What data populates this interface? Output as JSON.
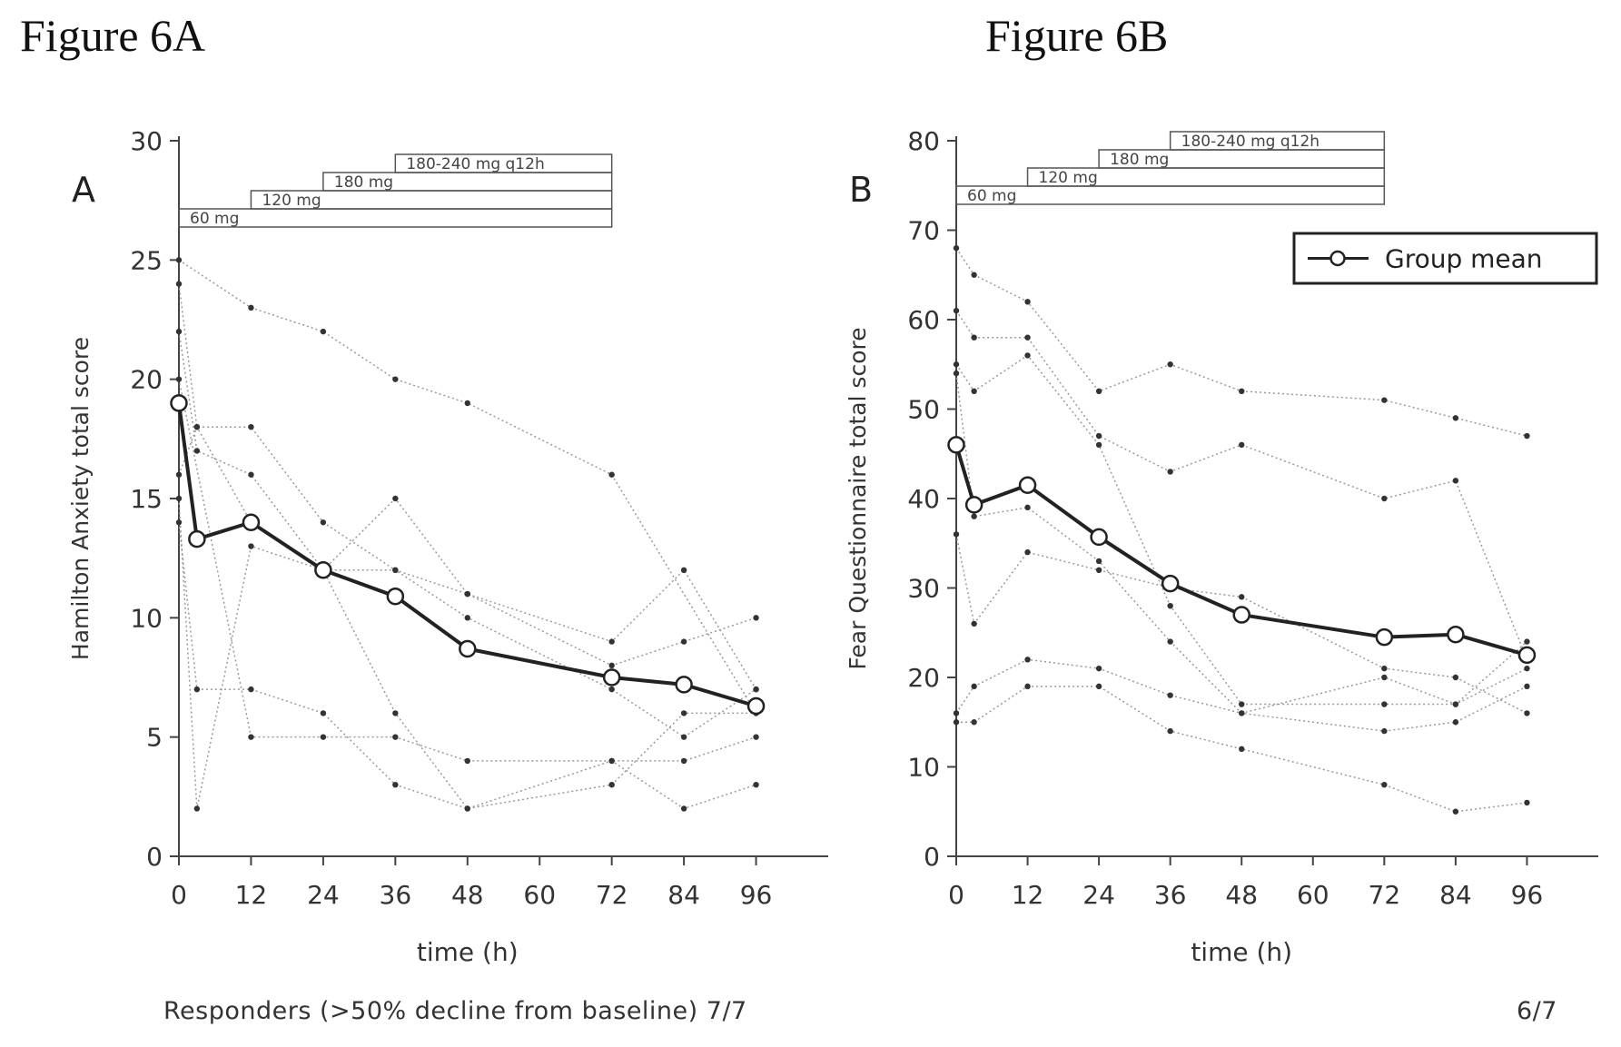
{
  "figures": {
    "a_title": "Figure 6A",
    "b_title": "Figure 6B"
  },
  "footer": {
    "left_text": "Responders (>50% decline from baseline) 7/7",
    "right_text": "6/7"
  },
  "chart_data": [
    {
      "type": "line",
      "panel_label": "A",
      "xlabel": "time (h)",
      "ylabel": "Hamilton Anxiety total score",
      "xticks": [
        0,
        12,
        24,
        36,
        48,
        60,
        72,
        84,
        96
      ],
      "yticks": [
        0,
        5,
        10,
        15,
        20,
        25,
        30
      ],
      "xlim": [
        0,
        108
      ],
      "ylim": [
        0,
        30
      ],
      "grid": false,
      "dose_bars": [
        {
          "label": "60 mg",
          "x_start": 0,
          "x_end": 72
        },
        {
          "label": "120 mg",
          "x_start": 12,
          "x_end": 72
        },
        {
          "label": "180 mg",
          "x_start": 24,
          "x_end": 72
        },
        {
          "label": "180-240 mg q12h",
          "x_start": 36,
          "x_end": 72
        }
      ],
      "mean": {
        "x": [
          0,
          3,
          12,
          24,
          36,
          48,
          72,
          84,
          96
        ],
        "y": [
          19,
          13.3,
          14,
          12,
          10.9,
          8.7,
          7.5,
          7.2,
          6.3
        ]
      },
      "individuals": [
        {
          "x": [
            0,
            12,
            24,
            36,
            48,
            72,
            96
          ],
          "y": [
            25,
            23,
            22,
            20,
            19,
            16,
            6
          ]
        },
        {
          "x": [
            0,
            3,
            12,
            24,
            36,
            48,
            72,
            84,
            96
          ],
          "y": [
            24,
            18,
            18,
            14,
            12,
            11,
            9,
            12,
            7
          ]
        },
        {
          "x": [
            0,
            3,
            12,
            24,
            36,
            48,
            72,
            84,
            96
          ],
          "y": [
            22,
            17,
            16,
            12,
            15,
            11,
            8,
            9,
            10
          ]
        },
        {
          "x": [
            0,
            3,
            12,
            24,
            36,
            48,
            72,
            84,
            96
          ],
          "y": [
            15,
            2,
            13,
            12,
            6,
            2,
            3,
            6,
            6
          ]
        },
        {
          "x": [
            0,
            3,
            12,
            24,
            36,
            48,
            72,
            84,
            96
          ],
          "y": [
            14,
            7,
            7,
            6,
            3,
            2,
            4,
            2,
            3
          ]
        },
        {
          "x": [
            0,
            12,
            24,
            36,
            48,
            72,
            84,
            96
          ],
          "y": [
            20,
            5,
            5,
            5,
            4,
            4,
            4,
            5
          ]
        },
        {
          "x": [
            0,
            3,
            12,
            24,
            36,
            48,
            72,
            84,
            96
          ],
          "y": [
            16,
            18,
            14,
            12,
            12,
            10,
            7,
            5,
            7
          ]
        }
      ]
    },
    {
      "type": "line",
      "panel_label": "B",
      "xlabel": "time (h)",
      "ylabel": "Fear Questionnaire total score",
      "xticks": [
        0,
        12,
        24,
        36,
        48,
        60,
        72,
        84,
        96
      ],
      "yticks": [
        0,
        10,
        20,
        30,
        40,
        50,
        60,
        70,
        80
      ],
      "xlim": [
        0,
        108
      ],
      "ylim": [
        0,
        80
      ],
      "grid": false,
      "legend": {
        "entries": [
          "Group mean"
        ],
        "placement": "top-right"
      },
      "dose_bars": [
        {
          "label": "60 mg",
          "x_start": 0,
          "x_end": 72
        },
        {
          "label": "120 mg",
          "x_start": 12,
          "x_end": 72
        },
        {
          "label": "180 mg",
          "x_start": 24,
          "x_end": 72
        },
        {
          "label": "180-240 mg q12h",
          "x_start": 36,
          "x_end": 72
        }
      ],
      "mean": {
        "x": [
          0,
          3,
          12,
          24,
          36,
          48,
          72,
          84,
          96
        ],
        "y": [
          46,
          39.3,
          41.5,
          35.7,
          30.5,
          27,
          24.5,
          24.8,
          22.5
        ]
      },
      "individuals": [
        {
          "x": [
            0,
            3,
            12,
            24,
            36,
            48,
            72,
            84,
            96
          ],
          "y": [
            68,
            65,
            62,
            52,
            55,
            52,
            51,
            49,
            47
          ]
        },
        {
          "x": [
            0,
            3,
            12,
            24,
            36,
            48,
            72,
            84,
            96
          ],
          "y": [
            61,
            58,
            58,
            47,
            43,
            46,
            40,
            42,
            22
          ]
        },
        {
          "x": [
            0,
            3,
            12,
            24,
            36,
            48,
            72,
            84,
            96
          ],
          "y": [
            55,
            52,
            56,
            46,
            28,
            17,
            17,
            17,
            24
          ]
        },
        {
          "x": [
            0,
            3,
            12,
            24,
            36,
            48,
            72,
            84,
            96
          ],
          "y": [
            54,
            38,
            39,
            33,
            24,
            16,
            14,
            15,
            19
          ]
        },
        {
          "x": [
            0,
            3,
            12,
            24,
            36,
            48,
            72,
            84,
            96
          ],
          "y": [
            36,
            26,
            34,
            32,
            30,
            29,
            21,
            20,
            16
          ]
        },
        {
          "x": [
            0,
            3,
            12,
            24,
            36,
            48,
            72,
            84,
            96
          ],
          "y": [
            16,
            19,
            22,
            21,
            18,
            16,
            20,
            17,
            21
          ]
        },
        {
          "x": [
            0,
            3,
            12,
            24,
            36,
            48,
            72,
            84,
            96
          ],
          "y": [
            15,
            15,
            19,
            19,
            14,
            12,
            8,
            5,
            6
          ]
        }
      ]
    }
  ]
}
